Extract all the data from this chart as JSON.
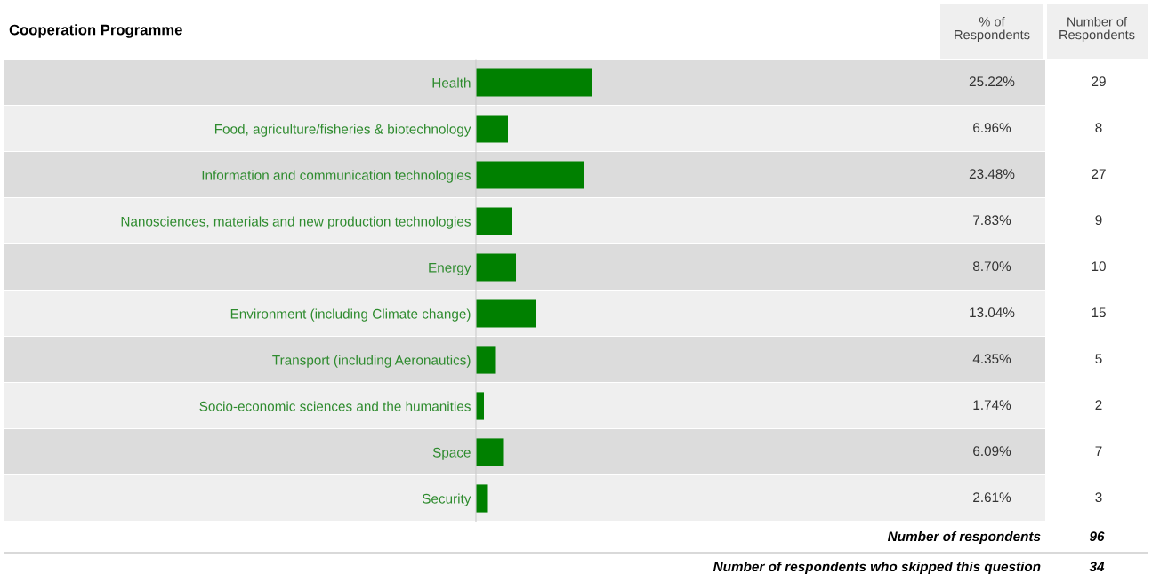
{
  "chart_data": {
    "type": "bar",
    "orientation": "horizontal",
    "title": "Cooperation Programme",
    "categories": [
      "Health",
      "Food, agriculture/fisheries & biotechnology",
      "Information and communication technologies",
      "Nanosciences, materials and new production technologies",
      "Energy",
      "Environment (including Climate change)",
      "Transport (including Aeronautics)",
      "Socio-economic sciences and the humanities",
      "Space",
      "Security"
    ],
    "values": [
      25.22,
      6.96,
      23.48,
      7.83,
      8.7,
      13.04,
      4.35,
      1.74,
      6.09,
      2.61
    ],
    "value_labels": [
      "25.22%",
      "6.96%",
      "23.48%",
      "7.83%",
      "8.70%",
      "13.04%",
      "4.35%",
      "1.74%",
      "6.09%",
      "2.61%"
    ],
    "color": "#008000",
    "grid": false,
    "tick_labels": "y",
    "annotations": [
      "% of\nRespondents",
      "Number of\nRespondents",
      "29",
      "8",
      "27",
      "9",
      "10",
      "15",
      "5",
      "2",
      "7",
      "3",
      "Number of respondents",
      "96",
      "Number of respondents who skipped this question",
      "34"
    ]
  }
}
